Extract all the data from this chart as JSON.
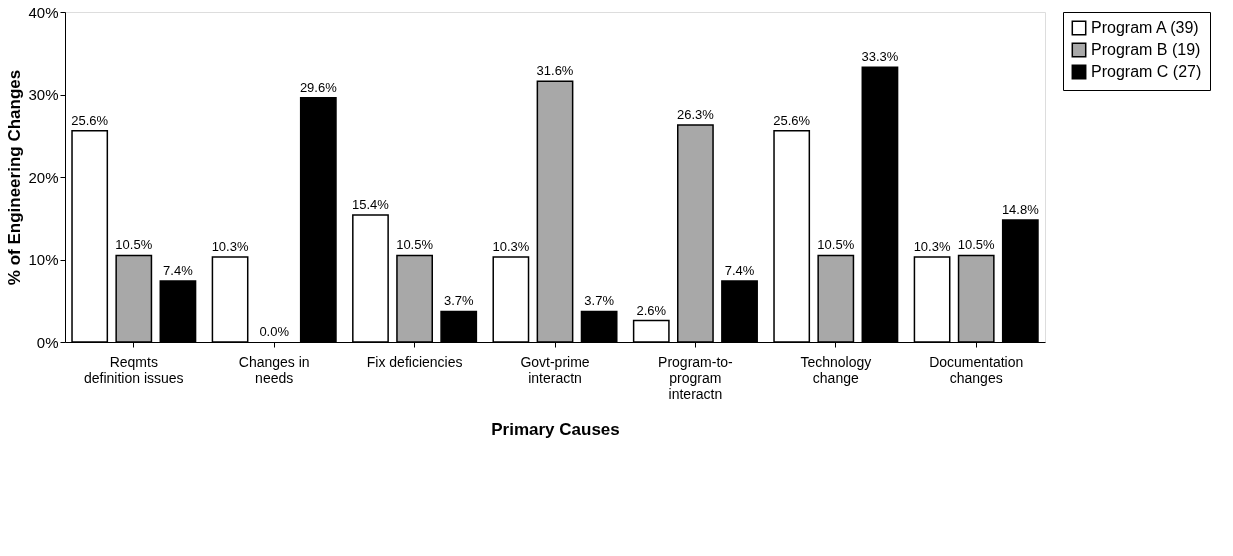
{
  "chart_data": {
    "type": "bar",
    "xlabel": "Primary Causes",
    "ylabel": "% of Engineering Changes",
    "categories": [
      "Reqmts\ndefinition issues",
      "Changes in\nneeds",
      "Fix deficiencies",
      "Govt-prime\ninteractn",
      "Program-to-\nprogram\ninteractn",
      "Technology\nchange",
      "Documentation\nchanges"
    ],
    "series": [
      {
        "name": "Program A (39)",
        "color": "#ffffff",
        "values": [
          25.6,
          10.3,
          15.4,
          10.3,
          2.6,
          25.6,
          10.3
        ],
        "value_labels": [
          "25.6%",
          "10.3%",
          "15.4%",
          "10.3%",
          "2.6%",
          "25.6%",
          "10.3%"
        ]
      },
      {
        "name": "Program B (19)",
        "color": "#a8a8a8",
        "values": [
          10.5,
          0.0,
          10.5,
          31.6,
          26.3,
          10.5,
          10.5
        ],
        "value_labels": [
          "10.5%",
          "0.0%",
          "10.5%",
          "31.6%",
          "26.3%",
          "10.5%",
          "10.5%"
        ]
      },
      {
        "name": "Program C (27)",
        "color": "#000000",
        "values": [
          7.4,
          29.6,
          3.7,
          3.7,
          7.4,
          33.3,
          14.8
        ],
        "value_labels": [
          "7.4%",
          "29.6%",
          "3.7%",
          "3.7%",
          "7.4%",
          "33.3%",
          "14.8%"
        ]
      }
    ],
    "ylim": [
      0,
      40
    ],
    "yticks": [
      {
        "value": 0,
        "label": "0%"
      },
      {
        "value": 10,
        "label": "10%"
      },
      {
        "value": 20,
        "label": "20%"
      },
      {
        "value": 30,
        "label": "30%"
      },
      {
        "value": 40,
        "label": "40%"
      }
    ],
    "grid": false,
    "legend": "top right"
  }
}
